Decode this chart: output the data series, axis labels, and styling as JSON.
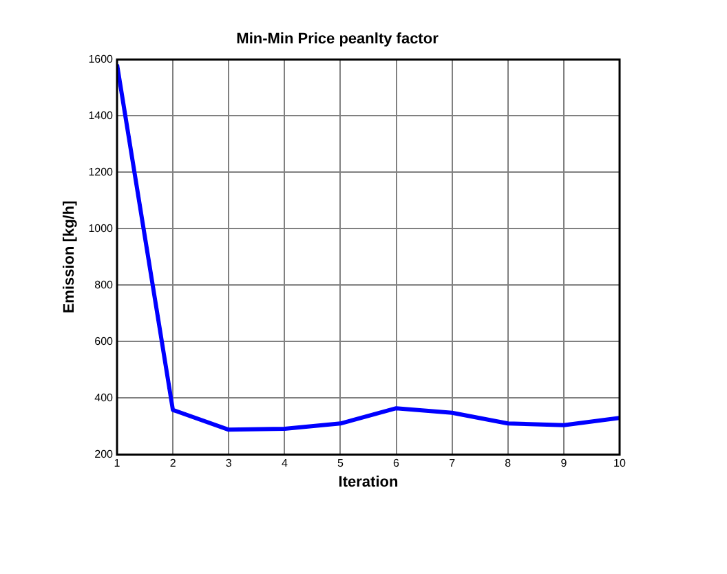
{
  "chart_data": {
    "type": "line",
    "title": "Min-Min Price peanlty factor",
    "xlabel": "Iteration",
    "ylabel": "Emission [kg/h]",
    "x": [
      1,
      2,
      3,
      4,
      5,
      6,
      7,
      8,
      9,
      10
    ],
    "series": [
      {
        "color": "#0000ff",
        "values": [
          1582,
          358,
          288,
          291,
          310,
          364,
          348,
          310,
          304,
          330
        ]
      }
    ],
    "xlim": [
      1,
      10
    ],
    "xticks": [
      1,
      2,
      3,
      4,
      5,
      6,
      7,
      8,
      9,
      10
    ],
    "ylim": [
      200,
      1600
    ],
    "yticks": [
      200,
      400,
      600,
      800,
      1000,
      1200,
      1400,
      1600
    ],
    "grid": true,
    "legend": false,
    "marker": "none",
    "line_style": "solid"
  }
}
